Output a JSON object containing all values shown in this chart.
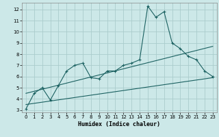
{
  "title": "",
  "xlabel": "Humidex (Indice chaleur)",
  "bg_color": "#cce8e8",
  "grid_color": "#aacccc",
  "line_color": "#1a6060",
  "xlim": [
    -0.5,
    23.5
  ],
  "ylim": [
    2.8,
    12.6
  ],
  "xticks": [
    0,
    1,
    2,
    3,
    4,
    5,
    6,
    7,
    8,
    9,
    10,
    11,
    12,
    13,
    14,
    15,
    16,
    17,
    18,
    19,
    20,
    21,
    22,
    23
  ],
  "yticks": [
    3,
    4,
    5,
    6,
    7,
    8,
    9,
    10,
    11,
    12
  ],
  "curve1_x": [
    0,
    1,
    2,
    3,
    4,
    5,
    6,
    7,
    8,
    9,
    10,
    11,
    12,
    13,
    14,
    15,
    16,
    17,
    18,
    19,
    20,
    21,
    22,
    23
  ],
  "curve1_y": [
    3.1,
    4.5,
    5.0,
    3.9,
    5.2,
    6.5,
    7.0,
    7.2,
    5.9,
    5.8,
    6.5,
    6.5,
    7.0,
    7.2,
    7.5,
    12.3,
    11.3,
    11.8,
    9.0,
    8.5,
    7.8,
    7.5,
    6.5,
    6.0
  ],
  "curve2_x": [
    0,
    23
  ],
  "curve2_y": [
    3.5,
    5.9
  ],
  "curve3_x": [
    0,
    23
  ],
  "curve3_y": [
    4.5,
    8.7
  ]
}
